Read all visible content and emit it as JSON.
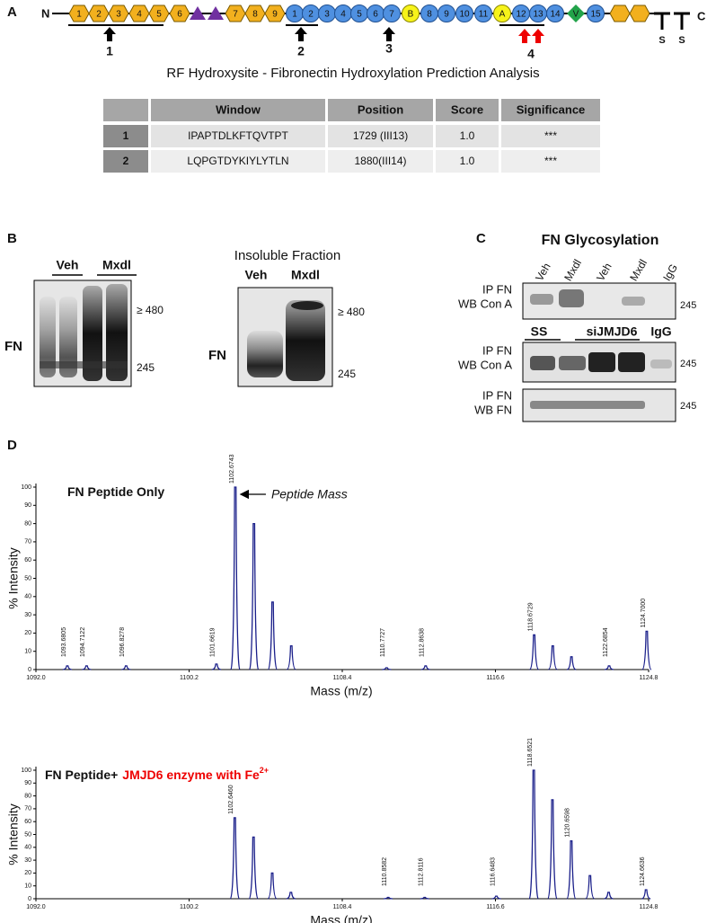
{
  "panel_a": {
    "letter": "A",
    "n_label": "N",
    "c_label": "C",
    "s_labels": [
      "S",
      "S"
    ],
    "domains": [
      "1",
      "2",
      "3",
      "4",
      "5",
      "6",
      "7",
      "8",
      "9",
      "1",
      "2",
      "3",
      "4",
      "5",
      "6",
      "7",
      "B",
      "8",
      "9",
      "10",
      "11",
      "A",
      "12",
      "13",
      "14",
      "V",
      "15"
    ],
    "sites": [
      "1",
      "2",
      "3",
      "4"
    ],
    "title": "RF Hydroxysite - Fibronectin Hydroxylation Prediction Analysis"
  },
  "table": {
    "header": [
      "Window",
      "Position",
      "Score",
      "Significance"
    ],
    "rows": [
      [
        "1",
        "IPAPTDLKFTQVTPT",
        "1729 (III13)",
        "1.0",
        "***"
      ],
      [
        "2",
        "LQPGTDYKIYLYTLN",
        "1880(III14)",
        "1.0",
        "***"
      ]
    ]
  },
  "panel_b": {
    "letter": "B",
    "left": {
      "lanes": [
        "Veh",
        "Mxdl"
      ],
      "markers": [
        "≥ 480",
        "245"
      ],
      "protein": "FN"
    },
    "right": {
      "title": "Insoluble Fraction",
      "lanes": [
        "Veh",
        "Mxdl"
      ],
      "markers": [
        "≥ 480",
        "245"
      ],
      "protein": "FN"
    }
  },
  "panel_c": {
    "letter": "C",
    "title": "FN Glycosylation",
    "lanes": [
      "Veh",
      "Mxdl",
      "Veh",
      "Mxdl",
      "IgG"
    ],
    "groups": [
      "SS",
      "siJMJD6",
      "IgG"
    ],
    "blots": [
      {
        "ip": "IP FN",
        "wb": "WB Con A",
        "marker": "245"
      },
      {
        "ip": "IP FN",
        "wb": "WB Con A",
        "marker": "245"
      },
      {
        "ip": "IP FN",
        "wb": "WB FN",
        "marker": "245"
      }
    ]
  },
  "panel_d": {
    "letter": "D"
  },
  "chart_data": [
    {
      "type": "spectrum",
      "title": "FN Peptide Only",
      "annotation": "Peptide Mass",
      "x_label": "Mass (m/z)",
      "y_label": "% Intensity",
      "color": "#1a1f8a",
      "label_color": "#b23a3a",
      "x": [
        1093.6805,
        1094.7122,
        1096.8278,
        1101.6619,
        1102.6743,
        1103.67,
        1104.67,
        1105.67,
        1110.7727,
        1112.8638,
        1118.6729,
        1119.67,
        1120.67,
        1122.6854,
        1124.7
      ],
      "x_labels": [
        "1093.6805",
        "1094.7122",
        "1096.8278",
        "1101.6619",
        "1102.6743",
        null,
        null,
        null,
        "1110.7727",
        "1112.8638",
        "1118.6729",
        null,
        null,
        "1122.6854",
        "1124.7000"
      ],
      "values": [
        2,
        2,
        2,
        3,
        100,
        80,
        37,
        13,
        1,
        2,
        19,
        13,
        7,
        2,
        21
      ],
      "xlim": [
        1092.0,
        1124.8
      ],
      "xticks": [
        {
          "value": 1092.0,
          "label": "1092.0"
        },
        {
          "value": 1100.2,
          "label": "1100.2"
        },
        {
          "value": 1108.4,
          "label": "1108.4"
        },
        {
          "value": 1116.6,
          "label": "1116.6"
        },
        {
          "value": 1124.8,
          "label": "1124.8"
        }
      ],
      "ylim": [
        0,
        100
      ],
      "yticks": [
        0,
        10,
        20,
        30,
        40,
        50,
        60,
        70,
        80,
        90,
        100
      ]
    },
    {
      "type": "spectrum",
      "title": "FN Peptide+",
      "title_highlight": "JMJD6 enzyme with Fe",
      "title_superscript": "2+",
      "x_label": "Mass (m/z)",
      "y_label": "% Intensity",
      "color": "#1a1f8a",
      "label_color": "#b23a3a",
      "x": [
        1102.646,
        1103.65,
        1104.65,
        1105.65,
        1110.8582,
        1112.8116,
        1116.6483,
        1118.6521,
        1119.65,
        1120.6598,
        1121.66,
        1122.66,
        1124.6636
      ],
      "x_labels": [
        "1102.6460",
        null,
        null,
        null,
        "1110.8582",
        "1112.8116",
        "1116.6483",
        "1118.6521",
        null,
        "1120.6598",
        null,
        null,
        "1124.6636"
      ],
      "values": [
        63,
        48,
        20,
        5,
        1,
        1,
        2,
        100,
        77,
        45,
        18,
        5,
        7
      ],
      "xlim": [
        1092.0,
        1124.8
      ],
      "xticks": [
        {
          "value": 1092.0,
          "label": "1092.0"
        },
        {
          "value": 1100.2,
          "label": "1100.2"
        },
        {
          "value": 1108.4,
          "label": "1108.4"
        },
        {
          "value": 1116.6,
          "label": "1116.6"
        },
        {
          "value": 1124.8,
          "label": "1124.8"
        }
      ],
      "ylim": [
        0,
        100
      ],
      "yticks": [
        0,
        10,
        20,
        30,
        40,
        50,
        60,
        70,
        80,
        90,
        100
      ]
    }
  ]
}
